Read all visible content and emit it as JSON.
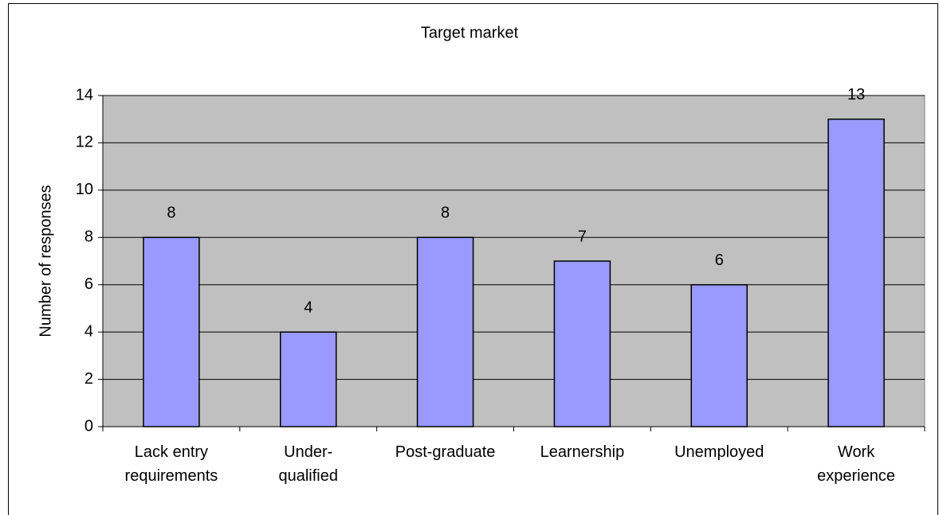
{
  "chart_data": {
    "type": "bar",
    "title": "Target market",
    "y_label": "Number of responses",
    "categories": [
      "Lack entry requirements",
      "Under-qualified",
      "Post-graduate",
      "Learnership",
      "Unemployed",
      "Work experience"
    ],
    "values": [
      8,
      4,
      8,
      7,
      6,
      13
    ],
    "color": "#9999ff",
    "ylim": [
      0,
      14
    ],
    "yticks": [
      0,
      2,
      4,
      6,
      8,
      10,
      12,
      14
    ],
    "grid": true
  }
}
